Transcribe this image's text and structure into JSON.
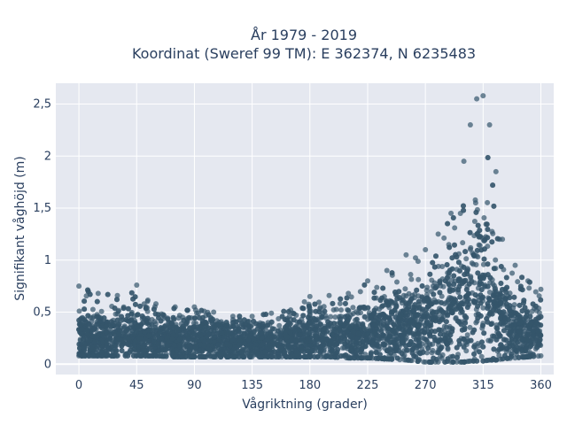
{
  "chart_data": {
    "type": "scatter",
    "title_lines": [
      "År 1979 - 2019",
      "Koordinat (Sweref 99 TM): E 362374, N 6235483"
    ],
    "xlabel": "Vågriktning (grader)",
    "ylabel": "Signifikant våghöjd (m)",
    "xlim": [
      -18,
      370
    ],
    "ylim": [
      -0.1,
      2.7
    ],
    "x_ticks": [
      0,
      45,
      90,
      135,
      180,
      225,
      270,
      315,
      360
    ],
    "x_tick_labels": [
      "0",
      "45",
      "90",
      "135",
      "180",
      "225",
      "270",
      "315",
      "360"
    ],
    "y_ticks": [
      0,
      0.5,
      1,
      1.5,
      2,
      2.5
    ],
    "y_tick_labels": [
      "0",
      "0,5",
      "1",
      "1,5",
      "2",
      "2,5"
    ],
    "grid": true,
    "legend": "none",
    "marker_color": "#34566b",
    "plot_background": "#e5e8f0",
    "series": [
      {
        "x": [
          0,
          15,
          30,
          45,
          60,
          75,
          90,
          105,
          120,
          135,
          150,
          165,
          180,
          195,
          210,
          225,
          240,
          255,
          270,
          280,
          290,
          300,
          305,
          310,
          315,
          320,
          325,
          330,
          340,
          350,
          360
        ],
        "y_min": [
          0.08,
          0.08,
          0.08,
          0.08,
          0.08,
          0.07,
          0.07,
          0.07,
          0.07,
          0.07,
          0.07,
          0.07,
          0.07,
          0.07,
          0.06,
          0.06,
          0.05,
          0.04,
          0.02,
          0.02,
          0.02,
          0.02,
          0.03,
          0.03,
          0.03,
          0.04,
          0.04,
          0.05,
          0.06,
          0.07,
          0.08
        ],
        "y_max": [
          0.75,
          0.68,
          0.66,
          0.76,
          0.58,
          0.55,
          0.55,
          0.5,
          0.46,
          0.46,
          0.49,
          0.52,
          0.65,
          0.66,
          0.68,
          0.8,
          0.9,
          1.05,
          1.1,
          1.25,
          1.45,
          1.95,
          2.3,
          2.55,
          2.58,
          2.3,
          1.85,
          1.2,
          0.95,
          0.8,
          0.72
        ],
        "y_median": [
          0.25,
          0.24,
          0.24,
          0.24,
          0.23,
          0.22,
          0.22,
          0.21,
          0.21,
          0.21,
          0.21,
          0.22,
          0.23,
          0.24,
          0.26,
          0.28,
          0.3,
          0.33,
          0.38,
          0.42,
          0.48,
          0.55,
          0.62,
          0.7,
          0.72,
          0.62,
          0.52,
          0.42,
          0.33,
          0.28,
          0.26
        ]
      }
    ]
  }
}
